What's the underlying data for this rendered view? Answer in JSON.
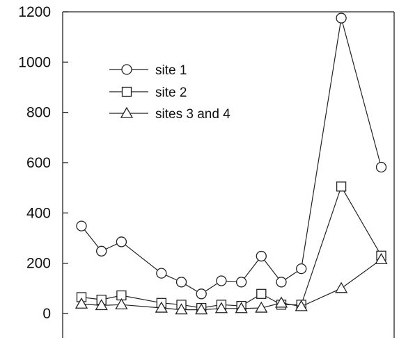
{
  "chart_data": {
    "type": "line",
    "title": "",
    "xlabel": "",
    "ylabel": "",
    "ylim": [
      -90,
      1200
    ],
    "yticks": [
      0,
      200,
      400,
      600,
      800,
      1000,
      1200
    ],
    "ytick_labels": [
      "0",
      "200",
      "400",
      "600",
      "800",
      "1000",
      "1200"
    ],
    "x": [
      1,
      2,
      3,
      5,
      6,
      7,
      8,
      9,
      10,
      11,
      12,
      14,
      16
    ],
    "grid": false,
    "legend_position": "upper-left",
    "series": [
      {
        "name": "site 1",
        "marker": "circle",
        "values": [
          348,
          248,
          285,
          160,
          125,
          78,
          130,
          125,
          228,
          125,
          178,
          1175,
          582
        ]
      },
      {
        "name": "site 2",
        "marker": "square",
        "values": [
          65,
          55,
          72,
          42,
          35,
          22,
          35,
          30,
          78,
          35,
          35,
          505,
          230
        ]
      },
      {
        "name": "sites 3 and 4",
        "marker": "triangle",
        "values": [
          38,
          32,
          35,
          22,
          15,
          15,
          20,
          20,
          22,
          42,
          28,
          100,
          215
        ]
      }
    ]
  }
}
